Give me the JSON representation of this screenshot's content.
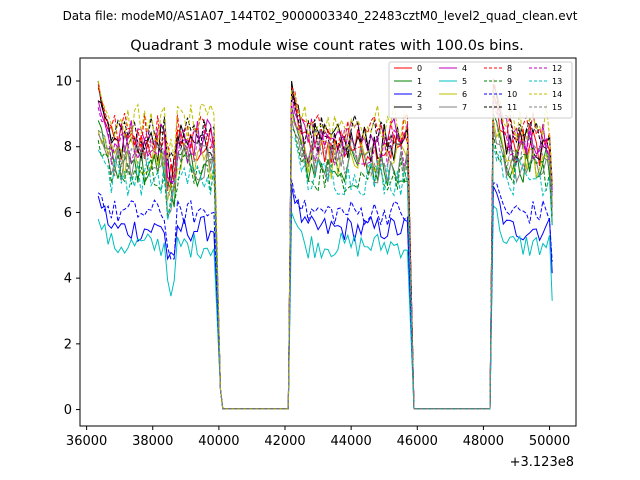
{
  "chart_data": {
    "type": "line",
    "suptitle": "Data file: modeM0/AS1A07_144T02_9000003340_22483cztM0_level2_quad_clean.evt",
    "title": "Quadrant 3 module wise count rates with 100.0s bins.",
    "xlabel": "",
    "ylabel": "",
    "x_offset_label": "+3.123e8",
    "xlim": [
      35800,
      50800
    ],
    "ylim": [
      -0.5,
      10.7
    ],
    "xticks": [
      36000,
      38000,
      40000,
      42000,
      44000,
      46000,
      48000,
      50000
    ],
    "xtick_labels": [
      "36000",
      "38000",
      "40000",
      "42000",
      "44000",
      "46000",
      "48000",
      "50000"
    ],
    "yticks": [
      0,
      2,
      4,
      6,
      8,
      10
    ],
    "ytick_labels": [
      "0",
      "2",
      "4",
      "6",
      "8",
      "10"
    ],
    "legend_position": "top-right",
    "segments": [
      {
        "start": 36350,
        "end": 39850
      },
      {
        "start": 42200,
        "end": 45750
      },
      {
        "start": 48300,
        "end": 50050
      }
    ],
    "gap_points": [
      [
        40050,
        0.6
      ],
      [
        40120,
        0.02
      ],
      [
        42100,
        0.02
      ],
      [
        45900,
        0.02
      ],
      [
        48200,
        0.02
      ]
    ],
    "series": [
      {
        "name": "0",
        "color": "#ff0000",
        "dash": "solid",
        "mean": 8.0,
        "peaks": [
          9.8,
          9.7,
          9.6
        ]
      },
      {
        "name": "1",
        "color": "#008000",
        "dash": "solid",
        "mean": 7.4,
        "peaks": [
          8.8,
          9.2,
          9.0
        ]
      },
      {
        "name": "2",
        "color": "#0000ff",
        "dash": "solid",
        "mean": 5.5,
        "peaks": [
          6.5,
          6.8,
          6.8
        ]
      },
      {
        "name": "3",
        "color": "#000000",
        "dash": "solid",
        "mean": 8.1,
        "peaks": [
          10.0,
          10.0,
          9.9
        ]
      },
      {
        "name": "4",
        "color": "#bf00bf",
        "dash": "solid",
        "mean": 8.3,
        "peaks": [
          9.4,
          9.6,
          9.5
        ]
      },
      {
        "name": "5",
        "color": "#00bfbf",
        "dash": "solid",
        "mean": 5.0,
        "peaks": [
          5.8,
          6.0,
          6.2
        ]
      },
      {
        "name": "6",
        "color": "#bfbf00",
        "dash": "solid",
        "mean": 7.6,
        "peaks": [
          8.5,
          9.0,
          8.8
        ]
      },
      {
        "name": "7",
        "color": "#808080",
        "dash": "solid",
        "mean": 7.5,
        "peaks": [
          8.4,
          8.8,
          8.6
        ]
      },
      {
        "name": "8",
        "color": "#ff0000",
        "dash": "dashed",
        "mean": 8.5,
        "peaks": [
          9.9,
          9.8,
          10.1
        ]
      },
      {
        "name": "9",
        "color": "#008000",
        "dash": "dashed",
        "mean": 7.2,
        "peaks": [
          8.2,
          8.6,
          8.4
        ]
      },
      {
        "name": "10",
        "color": "#0000ff",
        "dash": "dashed",
        "mean": 6.0,
        "peaks": [
          6.6,
          7.0,
          6.9
        ]
      },
      {
        "name": "11",
        "color": "#000000",
        "dash": "dashed",
        "mean": 8.4,
        "peaks": [
          9.4,
          9.7,
          9.6
        ]
      },
      {
        "name": "12",
        "color": "#bf00bf",
        "dash": "dashed",
        "mean": 8.0,
        "peaks": [
          9.2,
          9.3,
          9.4
        ]
      },
      {
        "name": "13",
        "color": "#00bfbf",
        "dash": "dashed",
        "mean": 7.1,
        "peaks": [
          7.9,
          8.3,
          8.1
        ]
      },
      {
        "name": "14",
        "color": "#bfbf00",
        "dash": "dashed",
        "mean": 8.7,
        "peaks": [
          10.0,
          9.7,
          9.6
        ]
      },
      {
        "name": "15",
        "color": "#808080",
        "dash": "dashed",
        "mean": 7.7,
        "peaks": [
          8.5,
          8.8,
          8.7
        ]
      }
    ]
  }
}
